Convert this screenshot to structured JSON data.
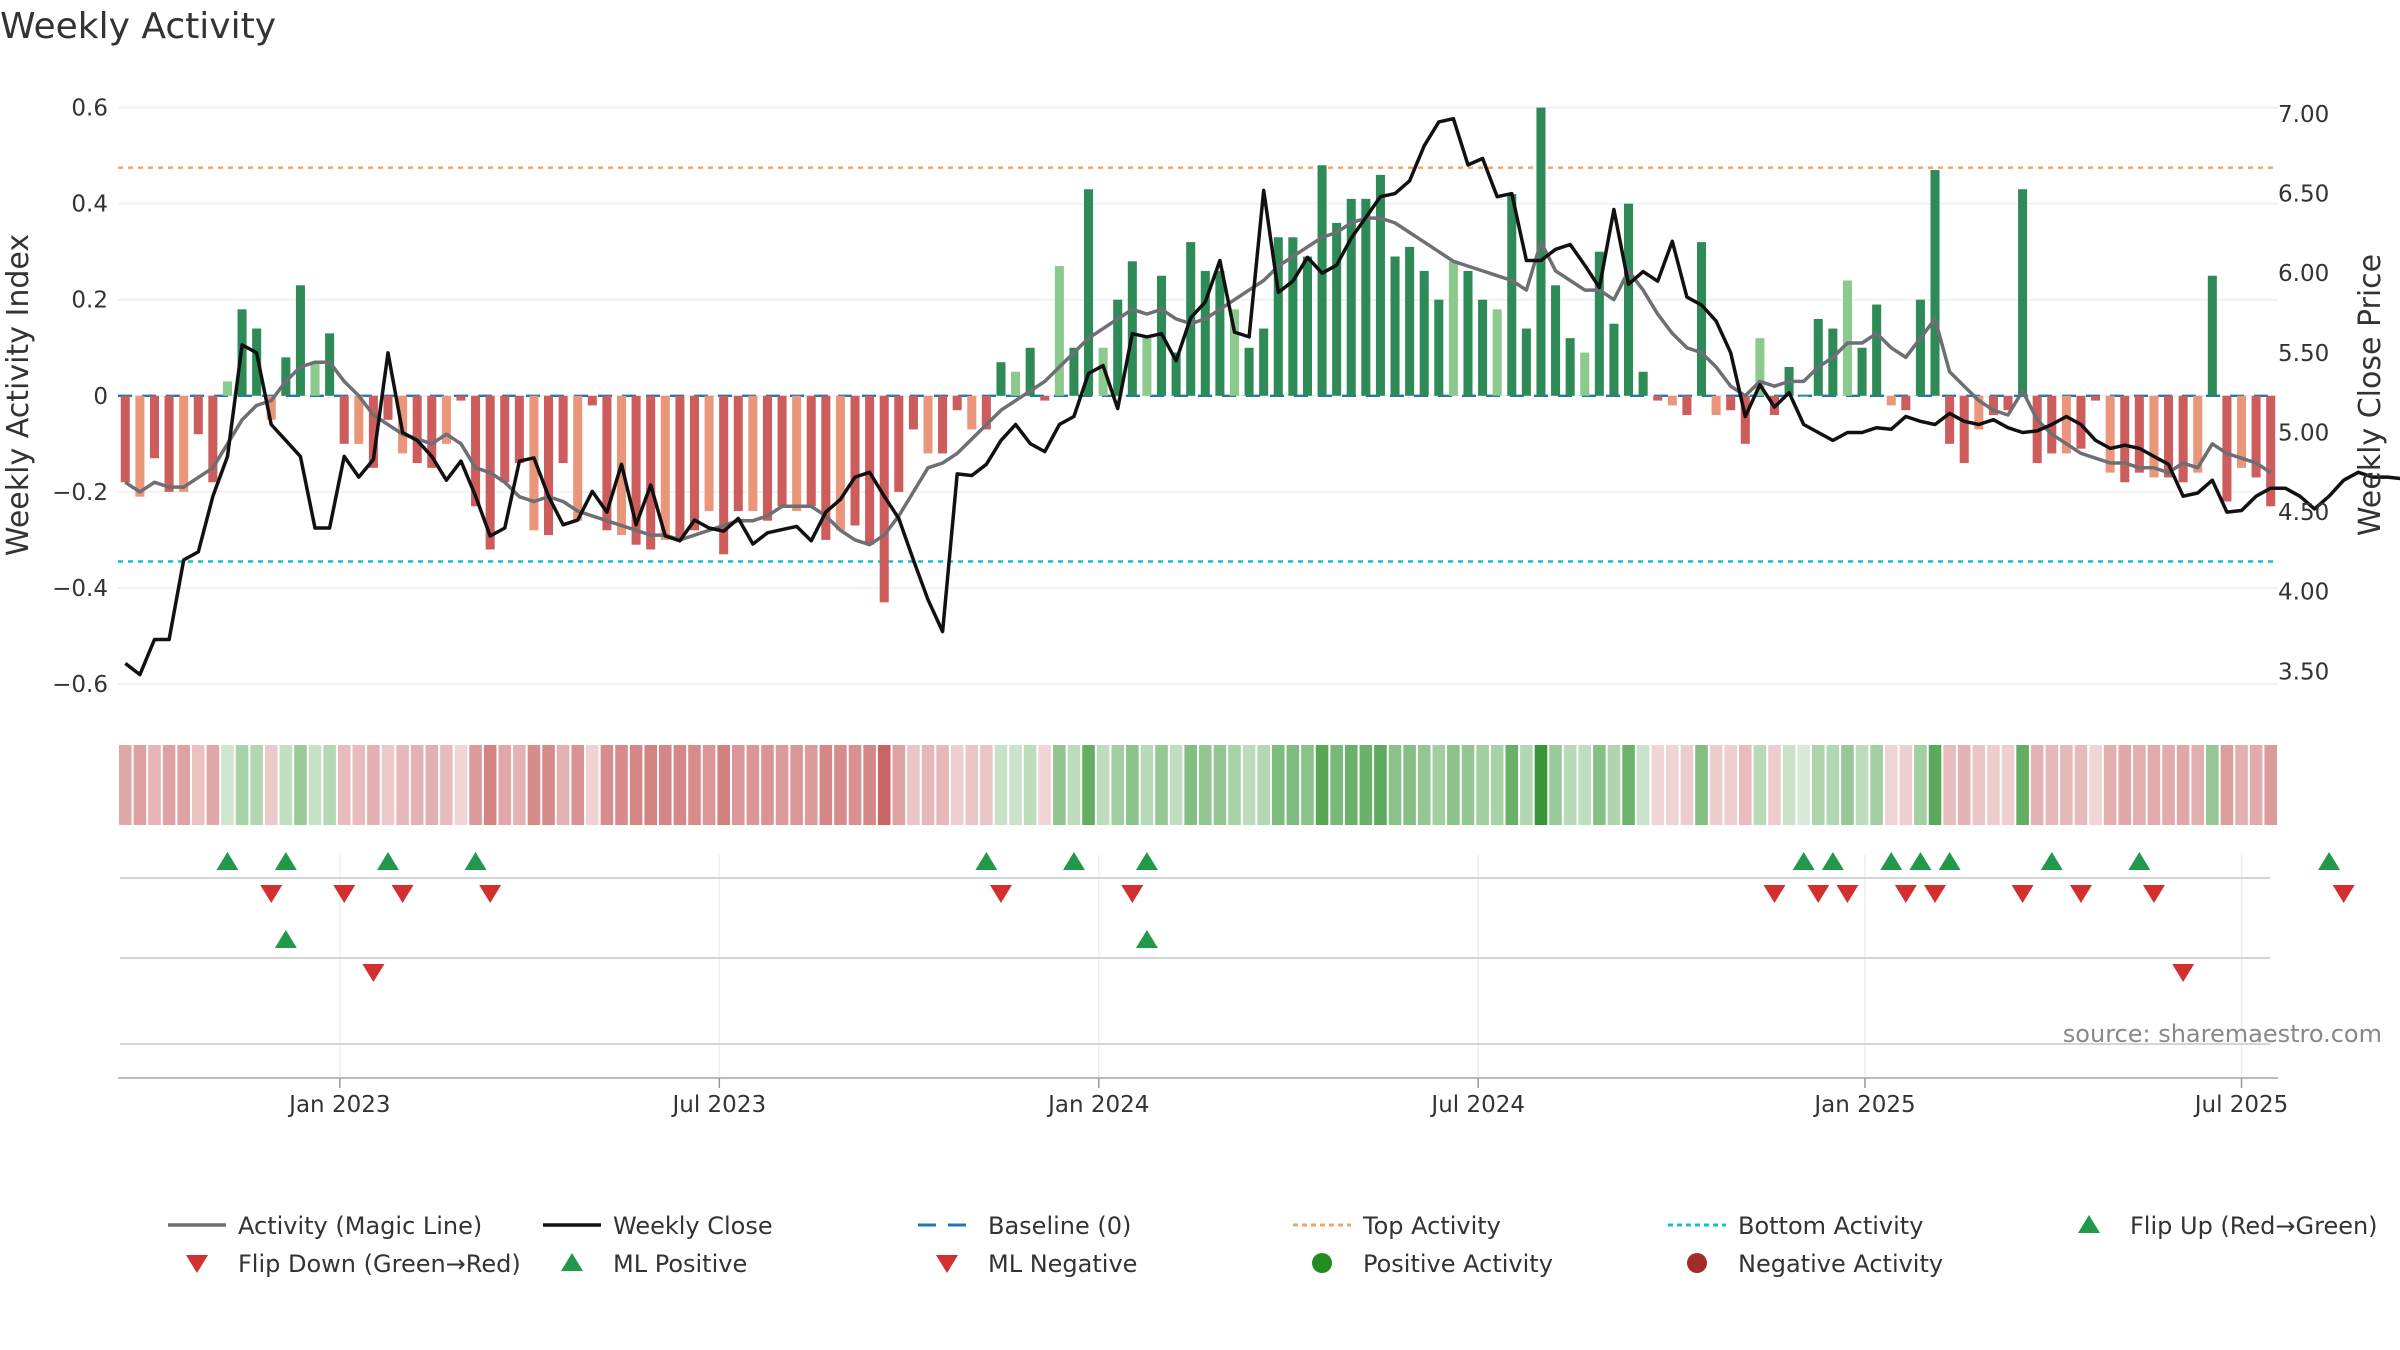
{
  "chart_data": {
    "type": "bar",
    "title": "Weekly Activity",
    "ylabel": "Weekly Activity Index",
    "y2label": "Weekly Close Price",
    "ylim": [
      -0.65,
      0.62
    ],
    "y2lim": [
      3.27,
      7.1
    ],
    "yticks": [
      {
        "v": 0.6,
        "label": "0.6"
      },
      {
        "v": 0.4,
        "label": "0.4"
      },
      {
        "v": 0.2,
        "label": "0.2"
      },
      {
        "v": 0,
        "label": "0"
      },
      {
        "v": -0.2,
        "label": "−0.2"
      },
      {
        "v": -0.4,
        "label": "−0.4"
      },
      {
        "v": -0.6,
        "label": "−0.6"
      }
    ],
    "y2ticks": [
      {
        "v": 7.0,
        "label": "7.00"
      },
      {
        "v": 6.5,
        "label": "6.50"
      },
      {
        "v": 6.0,
        "label": "6.00"
      },
      {
        "v": 5.5,
        "label": "5.50"
      },
      {
        "v": 5.0,
        "label": "5.00"
      },
      {
        "v": 4.5,
        "label": "4.50"
      },
      {
        "v": 4.0,
        "label": "4.00"
      },
      {
        "v": 3.5,
        "label": "3.50"
      }
    ],
    "xticks": [
      {
        "week": 15.2,
        "label": "Jan 2023"
      },
      {
        "week": 41.2,
        "label": "Jul 2023"
      },
      {
        "week": 67.2,
        "label": "Jan 2024"
      },
      {
        "week": 93.2,
        "label": "Jul 2024"
      },
      {
        "week": 119.7,
        "label": "Jan 2025"
      },
      {
        "week": 145.5,
        "label": "Jul 2025"
      }
    ],
    "top_activity": 0.475,
    "bottom_activity": -0.345,
    "activity": [
      -0.18,
      -0.21,
      -0.13,
      -0.2,
      -0.2,
      -0.08,
      -0.18,
      0.03,
      0.18,
      0.14,
      -0.05,
      0.08,
      0.23,
      0.07,
      0.13,
      -0.1,
      -0.1,
      -0.15,
      -0.05,
      -0.12,
      -0.14,
      -0.15,
      -0.1,
      -0.01,
      -0.23,
      -0.32,
      -0.18,
      -0.14,
      -0.28,
      -0.29,
      -0.14,
      -0.26,
      -0.02,
      -0.28,
      -0.29,
      -0.31,
      -0.32,
      -0.3,
      -0.3,
      -0.28,
      -0.24,
      -0.33,
      -0.24,
      -0.24,
      -0.26,
      -0.23,
      -0.24,
      -0.23,
      -0.3,
      -0.28,
      -0.27,
      -0.31,
      -0.43,
      -0.2,
      -0.07,
      -0.12,
      -0.12,
      -0.03,
      -0.07,
      -0.07,
      0.07,
      0.05,
      0.1,
      -0.01,
      0.27,
      0.1,
      0.43,
      0.1,
      0.2,
      0.28,
      0.12,
      0.25,
      0.09,
      0.32,
      0.26,
      0.26,
      0.18,
      0.1,
      0.14,
      0.33,
      0.33,
      0.29,
      0.48,
      0.36,
      0.41,
      0.41,
      0.46,
      0.29,
      0.31,
      0.26,
      0.2,
      0.28,
      0.26,
      0.2,
      0.18,
      0.42,
      0.14,
      0.6,
      0.23,
      0.12,
      0.09,
      0.3,
      0.15,
      0.4,
      0.05,
      -0.01,
      -0.02,
      -0.04,
      0.32,
      -0.04,
      -0.03,
      -0.1,
      0.12,
      -0.04,
      0.06,
      0.0,
      0.16,
      0.14,
      0.24,
      0.1,
      0.19,
      -0.02,
      -0.03,
      0.2,
      0.47,
      -0.1,
      -0.14,
      -0.07,
      -0.04,
      -0.03,
      0.43,
      -0.14,
      -0.12,
      -0.12,
      -0.11,
      -0.01,
      -0.16,
      -0.18,
      -0.16,
      -0.17,
      -0.17,
      -0.18,
      -0.16,
      0.25,
      -0.22,
      -0.15,
      -0.17,
      -0.23
    ],
    "magic_line": [
      -0.18,
      -0.2,
      -0.18,
      -0.19,
      -0.19,
      -0.17,
      -0.15,
      -0.1,
      -0.05,
      -0.02,
      -0.01,
      0.03,
      0.06,
      0.07,
      0.07,
      0.03,
      0.0,
      -0.04,
      -0.06,
      -0.08,
      -0.09,
      -0.1,
      -0.08,
      -0.1,
      -0.15,
      -0.16,
      -0.18,
      -0.21,
      -0.22,
      -0.21,
      -0.22,
      -0.24,
      -0.25,
      -0.26,
      -0.27,
      -0.28,
      -0.29,
      -0.29,
      -0.3,
      -0.29,
      -0.28,
      -0.27,
      -0.26,
      -0.26,
      -0.25,
      -0.23,
      -0.23,
      -0.23,
      -0.25,
      -0.28,
      -0.3,
      -0.31,
      -0.29,
      -0.25,
      -0.2,
      -0.15,
      -0.14,
      -0.12,
      -0.09,
      -0.06,
      -0.03,
      -0.01,
      0.01,
      0.03,
      0.06,
      0.09,
      0.12,
      0.14,
      0.16,
      0.18,
      0.17,
      0.18,
      0.16,
      0.15,
      0.16,
      0.18,
      0.2,
      0.22,
      0.24,
      0.27,
      0.29,
      0.31,
      0.33,
      0.34,
      0.36,
      0.37,
      0.37,
      0.36,
      0.34,
      0.32,
      0.3,
      0.28,
      0.27,
      0.26,
      0.25,
      0.24,
      0.22,
      0.32,
      0.26,
      0.24,
      0.22,
      0.22,
      0.2,
      0.26,
      0.22,
      0.17,
      0.13,
      0.1,
      0.09,
      0.06,
      0.02,
      0.0,
      0.03,
      0.02,
      0.03,
      0.03,
      0.06,
      0.08,
      0.11,
      0.11,
      0.13,
      0.1,
      0.08,
      0.12,
      0.16,
      0.05,
      0.02,
      -0.01,
      -0.03,
      -0.04,
      0.01,
      -0.05,
      -0.08,
      -0.1,
      -0.12,
      -0.13,
      -0.14,
      -0.14,
      -0.15,
      -0.15,
      -0.16,
      -0.14,
      -0.15,
      -0.1,
      -0.12,
      -0.13,
      -0.14,
      -0.16
    ],
    "weekly_close": [
      3.55,
      3.48,
      3.7,
      3.7,
      4.2,
      4.25,
      4.6,
      4.85,
      5.55,
      5.5,
      5.05,
      4.95,
      4.85,
      4.4,
      4.4,
      4.85,
      4.72,
      4.83,
      5.5,
      5.0,
      4.95,
      4.85,
      4.7,
      4.82,
      4.6,
      4.35,
      4.4,
      4.82,
      4.84,
      4.6,
      4.42,
      4.45,
      4.63,
      4.5,
      4.8,
      4.42,
      4.67,
      4.35,
      4.32,
      4.45,
      4.4,
      4.38,
      4.46,
      4.3,
      4.37,
      4.39,
      4.41,
      4.32,
      4.5,
      4.58,
      4.72,
      4.75,
      4.6,
      4.46,
      4.2,
      3.95,
      3.75,
      4.74,
      4.73,
      4.8,
      4.95,
      5.05,
      4.93,
      4.88,
      5.05,
      5.1,
      5.37,
      5.42,
      5.15,
      5.62,
      5.6,
      5.62,
      5.45,
      5.72,
      5.82,
      6.08,
      5.63,
      5.6,
      6.52,
      5.88,
      5.95,
      6.1,
      6.0,
      6.05,
      6.22,
      6.35,
      6.48,
      6.5,
      6.58,
      6.8,
      6.95,
      6.97,
      6.68,
      6.72,
      6.48,
      6.5,
      6.08,
      6.08,
      6.15,
      6.18,
      6.05,
      5.91,
      6.4,
      5.93,
      6.01,
      5.95,
      6.2,
      5.85,
      5.8,
      5.7,
      5.5,
      5.1,
      5.3,
      5.16,
      5.25,
      5.05,
      5.0,
      4.95,
      5.0,
      5.0,
      5.03,
      5.02,
      5.1,
      5.07,
      5.05,
      5.12,
      5.07,
      5.05,
      5.08,
      5.03,
      5.0,
      5.01,
      5.05,
      5.1,
      5.05,
      4.95,
      4.9,
      4.92,
      4.9,
      4.85,
      4.8,
      4.6,
      4.62,
      4.7,
      4.5,
      4.51,
      4.6,
      4.65,
      4.65,
      4.6,
      4.52,
      4.6,
      4.7,
      4.75,
      4.72,
      4.72,
      4.71
    ],
    "series": [
      {
        "name": "Activity (Magic Line)",
        "key": "magic_line",
        "color": "#6e6e75"
      },
      {
        "name": "Weekly Close",
        "key": "weekly_close",
        "color": "#111111"
      }
    ],
    "markers": {
      "row1_up": [
        7,
        11,
        18,
        24,
        59,
        65,
        70,
        115,
        117,
        121,
        123,
        125,
        132,
        138,
        151
      ],
      "row1_down": [
        10,
        15,
        19,
        25,
        60,
        69,
        113,
        116,
        118,
        122,
        124,
        130,
        134,
        139,
        152
      ],
      "row2_up": [
        11,
        70
      ],
      "row2_down": [
        17,
        141
      ]
    },
    "colors": {
      "pos_strong": "#2e8b57",
      "pos_light": "#8cc98c",
      "neg_strong": "#cd5c5c",
      "neg_light": "#e9967a",
      "baseline": "#1f77b4",
      "top": "#f4a460",
      "bottom": "#17becf",
      "flip_up": "#22994a",
      "flip_down": "#d32f2f",
      "pos_dot": "#228b22",
      "neg_dot": "#a52a2a"
    },
    "legend": [
      {
        "label": "Activity (Magic Line)",
        "symbol": "line",
        "color": "#6e6e75"
      },
      {
        "label": "Weekly Close",
        "symbol": "line",
        "color": "#111111"
      },
      {
        "label": "Baseline (0)",
        "symbol": "dash",
        "color": "#1f77b4"
      },
      {
        "label": "Top Activity",
        "symbol": "dot-line",
        "color": "#f4a460"
      },
      {
        "label": "Bottom Activity",
        "symbol": "dot-line",
        "color": "#17becf"
      },
      {
        "label": "Flip Up (Red→Green)",
        "symbol": "tri-up",
        "color": "#22994a"
      },
      {
        "label": "Flip Down (Green→Red)",
        "symbol": "tri-down",
        "color": "#d32f2f"
      },
      {
        "label": "ML Positive",
        "symbol": "tri-up",
        "color": "#22994a"
      },
      {
        "label": "ML Negative",
        "symbol": "tri-down",
        "color": "#d32f2f"
      },
      {
        "label": "Positive Activity",
        "symbol": "circle",
        "color": "#228b22"
      },
      {
        "label": "Negative Activity",
        "symbol": "circle",
        "color": "#a52a2a"
      }
    ],
    "source": "source: sharemaestro.com"
  }
}
